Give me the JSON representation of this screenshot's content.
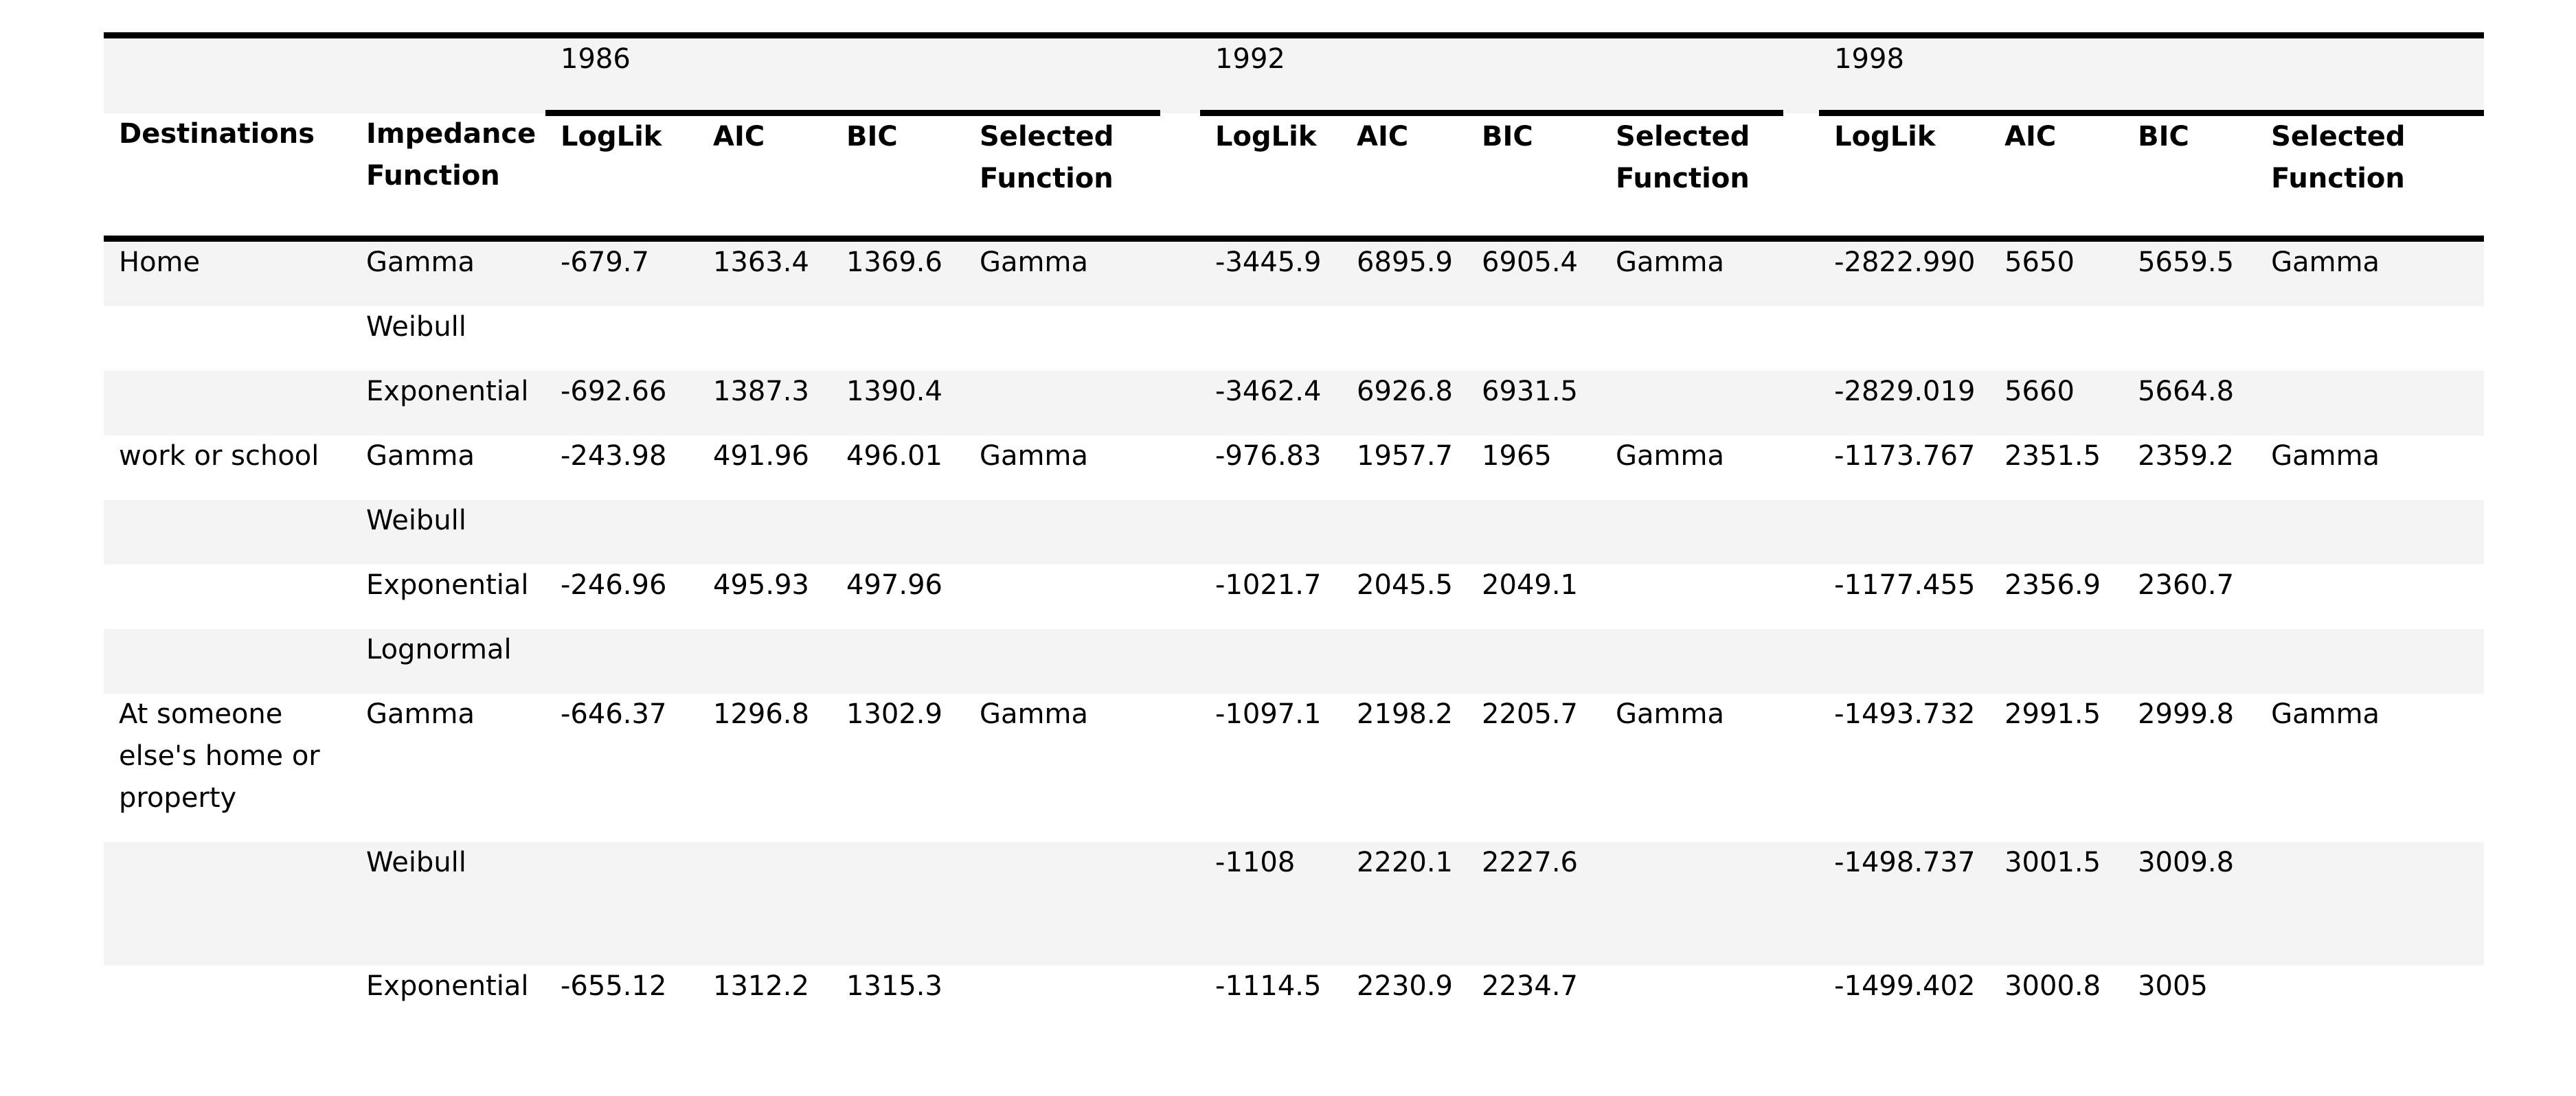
{
  "years": [
    "1986",
    "1992",
    "1998"
  ],
  "headers": {
    "destinations": "Destinations",
    "impedance": "Impedance Function",
    "loglik": "LogLik",
    "aic": "AIC",
    "bic": "BIC",
    "selected": "Selected Function"
  },
  "rows": [
    {
      "dest": "Home",
      "func": "Gamma",
      "y1986": {
        "loglik": "-679.7",
        "aic": "1363.4",
        "bic": "1369.6",
        "sel": "Gamma"
      },
      "y1992": {
        "loglik": "-3445.9",
        "aic": "6895.9",
        "bic": "6905.4",
        "sel": "Gamma"
      },
      "y1998": {
        "loglik": "-2822.990",
        "aic": "5650",
        "bic": "5659.5",
        "sel": "Gamma"
      }
    },
    {
      "dest": "",
      "func": "Weibull",
      "y1986": {
        "loglik": "",
        "aic": "",
        "bic": "",
        "sel": ""
      },
      "y1992": {
        "loglik": "",
        "aic": "",
        "bic": "",
        "sel": ""
      },
      "y1998": {
        "loglik": "",
        "aic": "",
        "bic": "",
        "sel": ""
      }
    },
    {
      "dest": "",
      "func": "Exponential",
      "y1986": {
        "loglik": "-692.66",
        "aic": "1387.3",
        "bic": "1390.4",
        "sel": ""
      },
      "y1992": {
        "loglik": "-3462.4",
        "aic": "6926.8",
        "bic": "6931.5",
        "sel": ""
      },
      "y1998": {
        "loglik": "-2829.019",
        "aic": "5660",
        "bic": "5664.8",
        "sel": ""
      }
    },
    {
      "dest": "work or school",
      "func": "Gamma",
      "y1986": {
        "loglik": "-243.98",
        "aic": "491.96",
        "bic": "496.01",
        "sel": "Gamma"
      },
      "y1992": {
        "loglik": "-976.83",
        "aic": "1957.7",
        "bic": "1965",
        "sel": "Gamma"
      },
      "y1998": {
        "loglik": "-1173.767",
        "aic": "2351.5",
        "bic": "2359.2",
        "sel": "Gamma"
      }
    },
    {
      "dest": "",
      "func": "Weibull",
      "y1986": {
        "loglik": "",
        "aic": "",
        "bic": "",
        "sel": ""
      },
      "y1992": {
        "loglik": "",
        "aic": "",
        "bic": "",
        "sel": ""
      },
      "y1998": {
        "loglik": "",
        "aic": "",
        "bic": "",
        "sel": ""
      }
    },
    {
      "dest": "",
      "func": "Exponential",
      "y1986": {
        "loglik": "-246.96",
        "aic": "495.93",
        "bic": "497.96",
        "sel": ""
      },
      "y1992": {
        "loglik": "-1021.7",
        "aic": "2045.5",
        "bic": "2049.1",
        "sel": ""
      },
      "y1998": {
        "loglik": "-1177.455",
        "aic": "2356.9",
        "bic": "2360.7",
        "sel": ""
      }
    },
    {
      "dest": "",
      "func": "Lognormal",
      "y1986": {
        "loglik": "",
        "aic": "",
        "bic": "",
        "sel": ""
      },
      "y1992": {
        "loglik": "",
        "aic": "",
        "bic": "",
        "sel": ""
      },
      "y1998": {
        "loglik": "",
        "aic": "",
        "bic": "",
        "sel": ""
      }
    },
    {
      "dest": "At someone else's home or property",
      "func": "Gamma",
      "y1986": {
        "loglik": "-646.37",
        "aic": "1296.8",
        "bic": "1302.9",
        "sel": "Gamma"
      },
      "y1992": {
        "loglik": "-1097.1",
        "aic": "2198.2",
        "bic": "2205.7",
        "sel": "Gamma"
      },
      "y1998": {
        "loglik": "-1493.732",
        "aic": "2991.5",
        "bic": "2999.8",
        "sel": "Gamma"
      }
    },
    {
      "dest": "",
      "func": "Weibull",
      "y1986": {
        "loglik": "",
        "aic": "",
        "bic": "",
        "sel": ""
      },
      "y1992": {
        "loglik": "-1108",
        "aic": "2220.1",
        "bic": "2227.6",
        "sel": ""
      },
      "y1998": {
        "loglik": "-1498.737",
        "aic": "3001.5",
        "bic": "3009.8",
        "sel": ""
      }
    },
    {
      "dest": "",
      "func": "Exponential",
      "y1986": {
        "loglik": "-655.12",
        "aic": "1312.2",
        "bic": "1315.3",
        "sel": ""
      },
      "y1992": {
        "loglik": "-1114.5",
        "aic": "2230.9",
        "bic": "2234.7",
        "sel": ""
      },
      "y1998": {
        "loglik": "-1499.402",
        "aic": "3000.8",
        "bic": "3005",
        "sel": ""
      }
    }
  ]
}
